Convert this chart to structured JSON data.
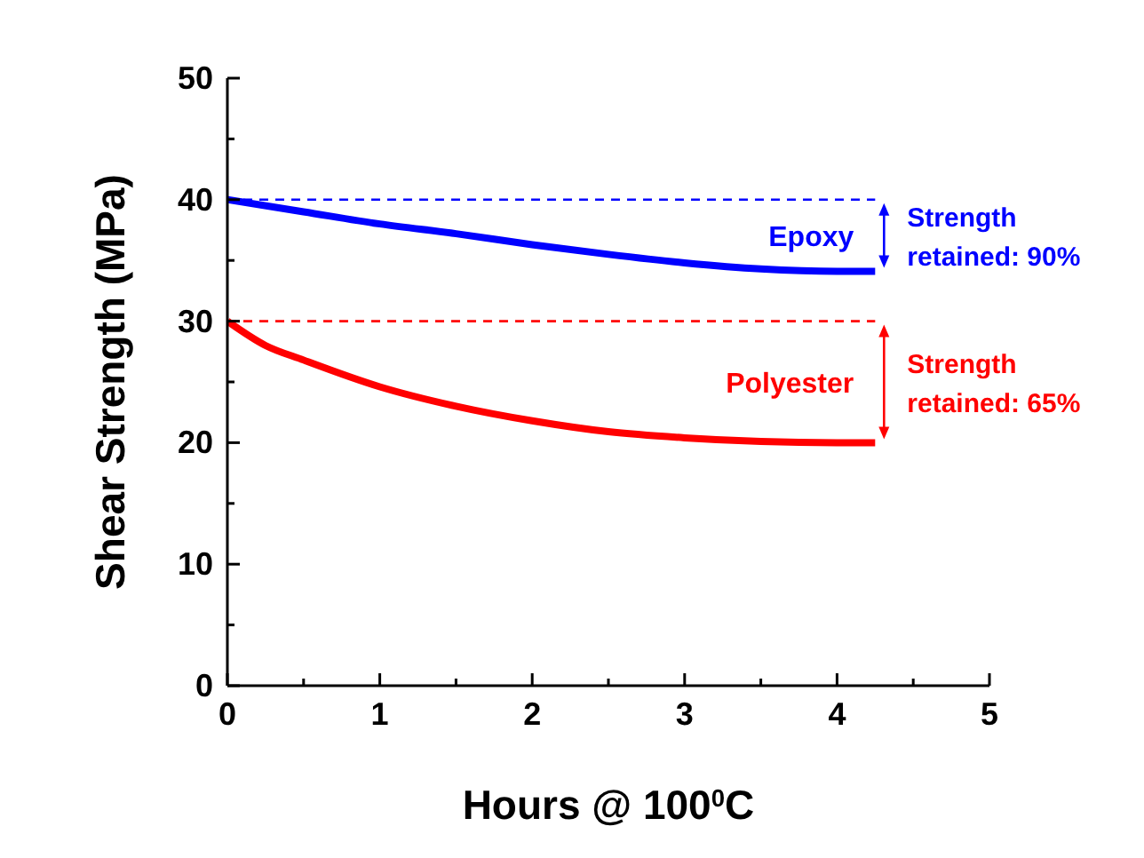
{
  "chart_data": {
    "type": "line",
    "xlabel": "Hours @ 100$^{0}$C",
    "ylabel": "Shear Strength (MPa)",
    "xlim": [
      0,
      5
    ],
    "xticks": [
      0,
      {
        "value": 0.5,
        "label": null
      },
      1,
      {
        "value": 1.5,
        "label": null
      },
      2,
      {
        "value": 2.5,
        "label": null
      },
      3,
      {
        "value": 3.5,
        "label": null
      },
      4,
      {
        "value": 4.5,
        "label": null
      },
      5
    ],
    "ylim": [
      0,
      50
    ],
    "yticks": [
      0,
      {
        "value": 5,
        "label": null
      },
      10,
      {
        "value": 15,
        "label": null
      },
      20,
      {
        "value": 25,
        "label": null
      },
      30,
      {
        "value": 35,
        "label": null
      },
      40,
      {
        "value": 45,
        "label": null
      },
      50
    ],
    "grid": false,
    "legend": "right",
    "marker": "none",
    "line_style": "solid",
    "series": [
      {
        "name": "Epoxy",
        "color": "#0000ff",
        "x": [
          0,
          0.5,
          1,
          1.5,
          2,
          2.5,
          3,
          3.5,
          4,
          4.25
        ],
        "values": [
          40,
          39,
          38,
          37.2,
          36.3,
          35.5,
          34.8,
          34.3,
          34.1,
          34.1
        ]
      },
      {
        "name": "Polyester",
        "color": "#ff0000",
        "x": [
          0,
          0.25,
          0.5,
          1,
          1.5,
          2,
          2.5,
          3,
          3.5,
          4,
          4.25
        ],
        "values": [
          30,
          28,
          26.8,
          24.6,
          23,
          21.8,
          20.9,
          20.4,
          20.1,
          20,
          20
        ]
      }
    ],
    "ref_lines": [
      {
        "axis": "y",
        "value": 40,
        "color": "#0000ff",
        "line_style": "dashed"
      },
      {
        "axis": "y",
        "value": 30,
        "color": "#ff0000",
        "line_style": "dashed"
      }
    ],
    "annotations": [
      "Strength retained: 90%",
      "Strength retained: 65%"
    ]
  }
}
